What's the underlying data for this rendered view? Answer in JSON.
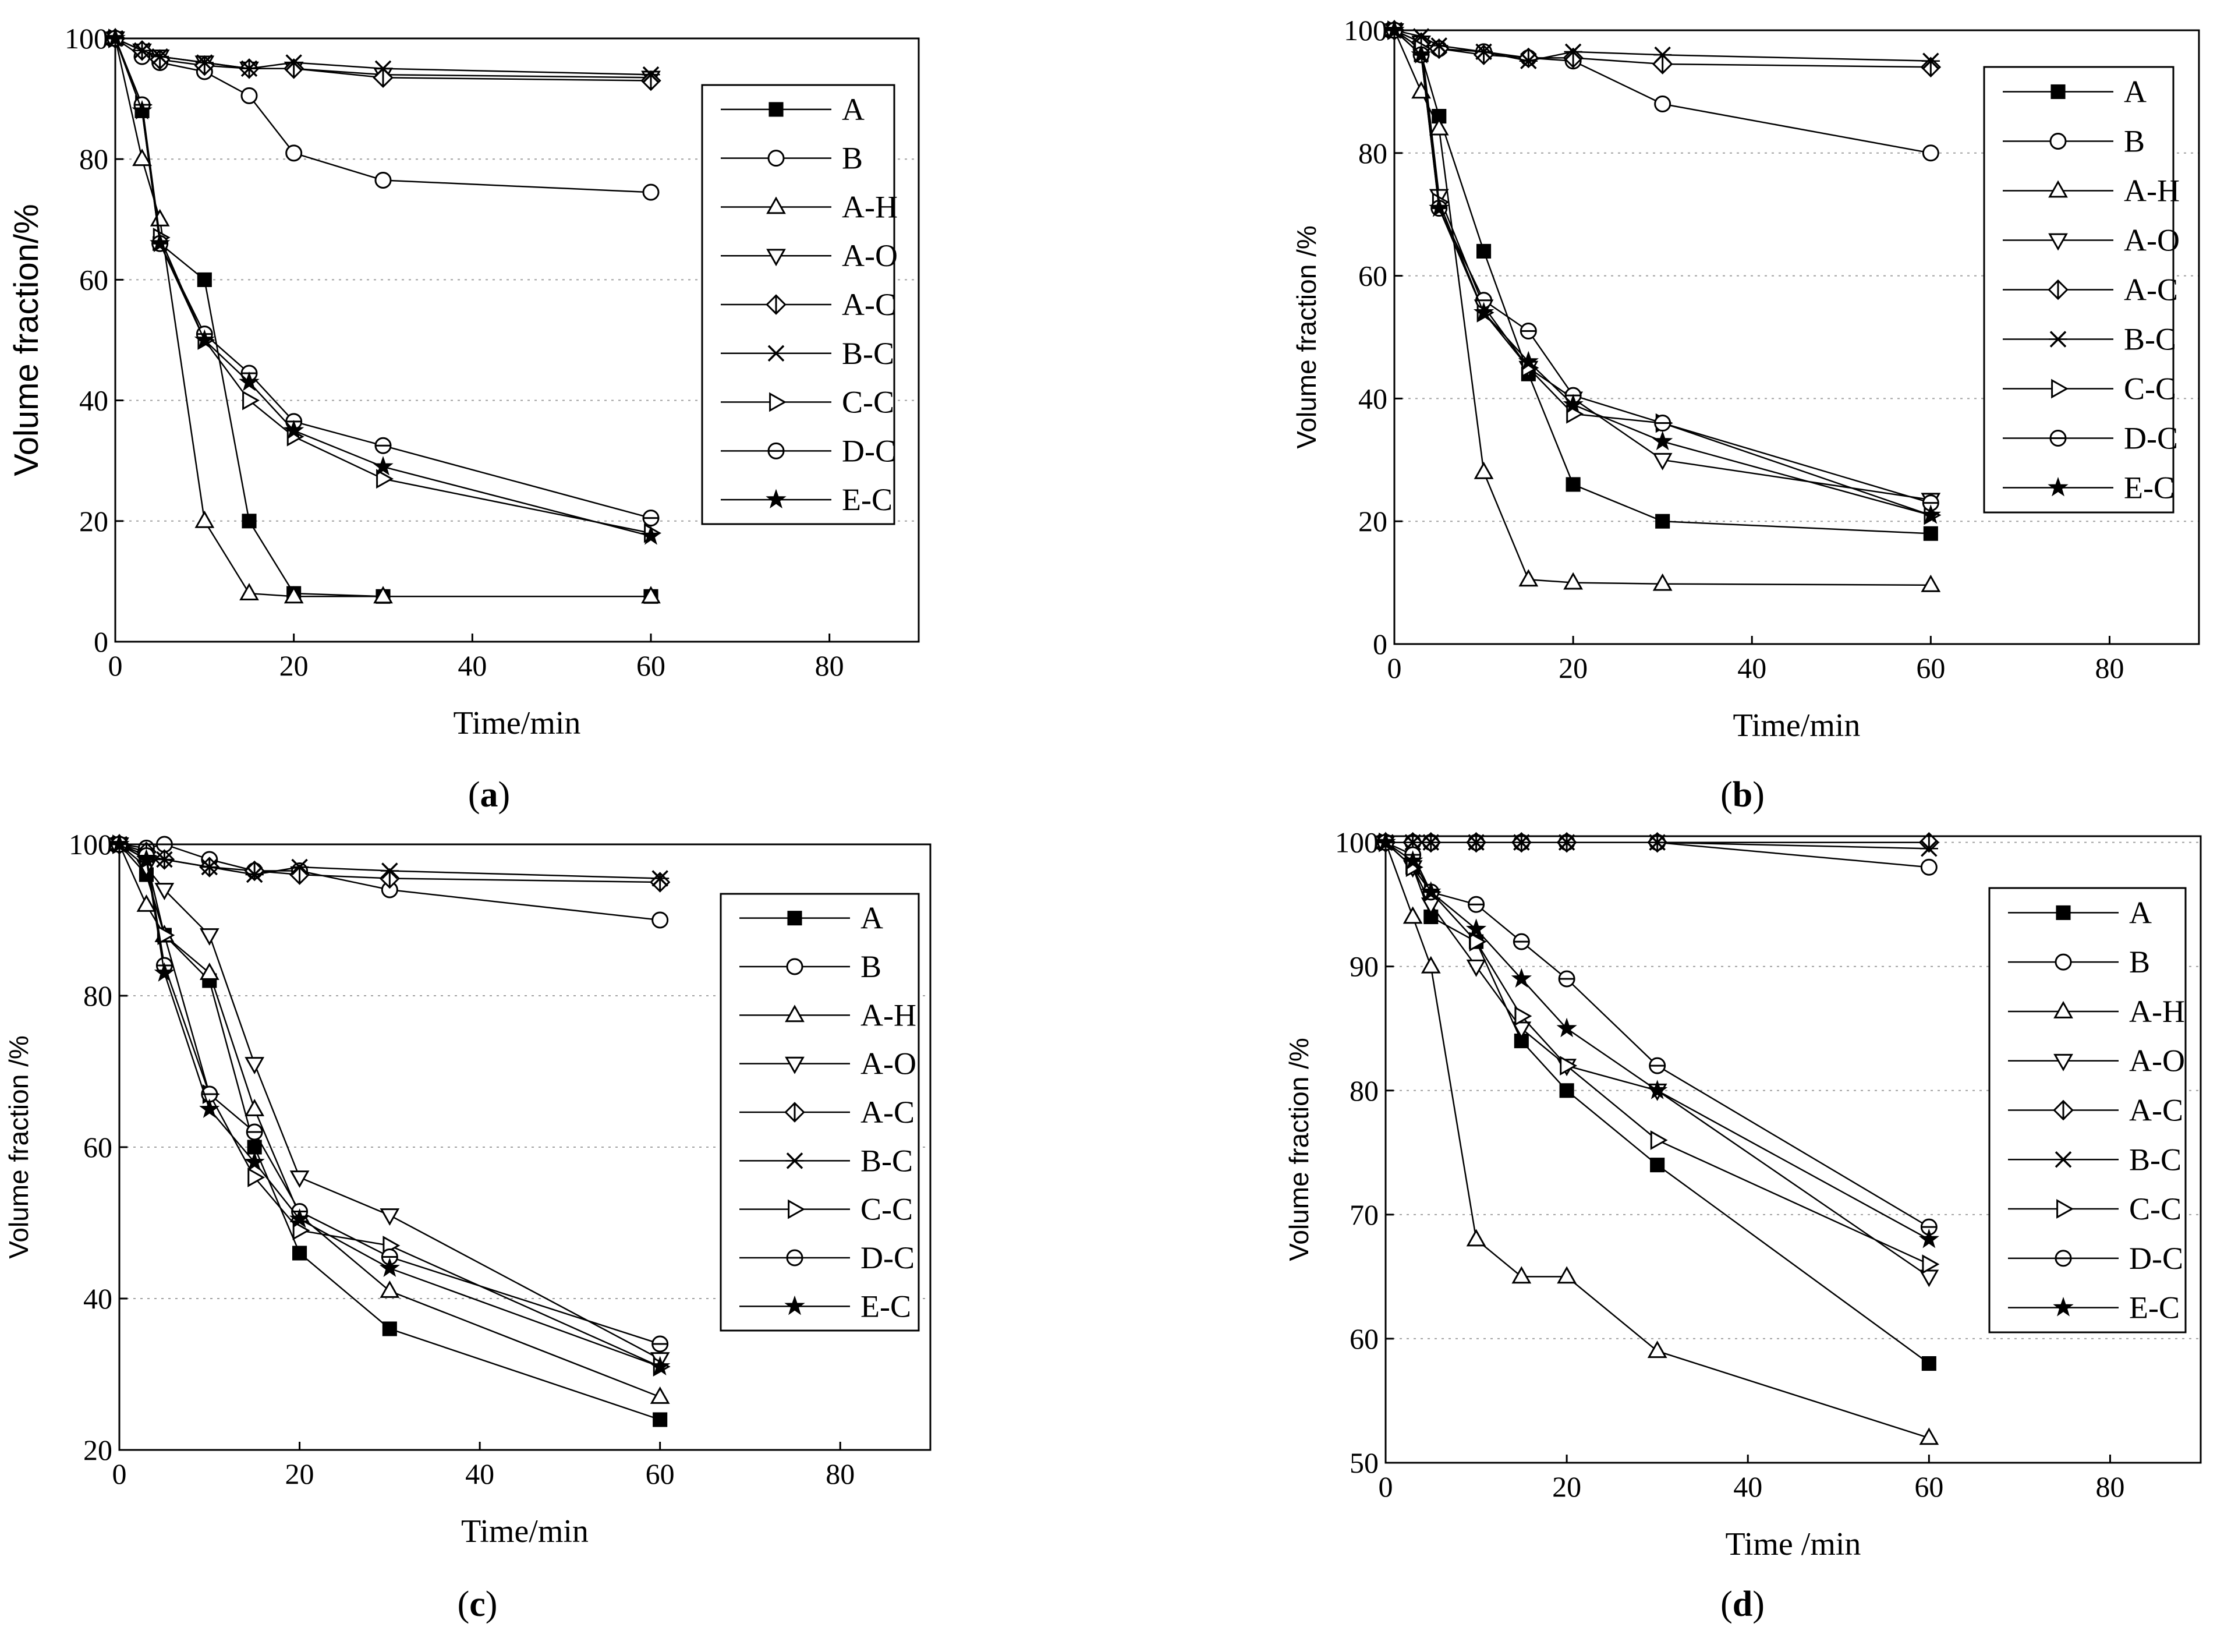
{
  "figure": {
    "marker_colors": {
      "stroke": "#000000",
      "fill_open": "#ffffff",
      "fill_solid": "#000000",
      "grid": "#a0a0a0"
    },
    "panels": [
      {
        "id": "a",
        "label_open": "(",
        "label_letter": "a",
        "label_close": ")",
        "chart_data": {
          "type": "line",
          "xlabel": "Time/min",
          "ylabel": "Volume fraction/%",
          "xlim": [
            0,
            90
          ],
          "ylim": [
            0,
            100
          ],
          "xticks": [
            0,
            20,
            40,
            60,
            80
          ],
          "yticks": [
            0,
            20,
            40,
            60,
            80,
            100
          ],
          "x": [
            0,
            3,
            5,
            10,
            15,
            20,
            30,
            60
          ],
          "series": [
            {
              "name": "A",
              "marker": "square-filled",
              "values": [
                100,
                88,
                66,
                60,
                20,
                8,
                7.5,
                7.5
              ]
            },
            {
              "name": "B",
              "marker": "circle",
              "values": [
                100,
                97,
                96,
                94.5,
                90.5,
                81,
                76.5,
                74.5
              ]
            },
            {
              "name": "A-H",
              "marker": "triangle-up",
              "values": [
                100,
                80,
                70,
                20,
                8,
                7.5,
                7.5,
                7.5
              ]
            },
            {
              "name": "A-O",
              "marker": "triangle-down",
              "values": [
                100,
                98,
                97,
                96,
                95,
                95,
                94,
                93.5
              ]
            },
            {
              "name": "A-C",
              "marker": "diamond-half",
              "values": [
                100,
                98,
                96.5,
                95.5,
                95,
                95,
                93.5,
                93
              ]
            },
            {
              "name": "B-C",
              "marker": "x-cross",
              "values": [
                100,
                98,
                97,
                96,
                95,
                96,
                95,
                94
              ]
            },
            {
              "name": "C-C",
              "marker": "triangle-right",
              "values": [
                100,
                89,
                67,
                50,
                40,
                34,
                27,
                18
              ]
            },
            {
              "name": "D-C",
              "marker": "circle-half",
              "values": [
                100,
                89,
                66,
                51,
                44.5,
                36.5,
                32.5,
                20.5
              ]
            },
            {
              "name": "E-C",
              "marker": "star",
              "values": [
                100,
                88,
                66,
                50,
                43,
                35,
                29,
                17.5
              ]
            }
          ]
        }
      },
      {
        "id": "b",
        "label_open": "(",
        "label_letter": "b",
        "label_close": ")",
        "chart_data": {
          "type": "line",
          "xlabel": "Time/min",
          "ylabel": "Volume fraction /%",
          "xlim": [
            0,
            90
          ],
          "ylim": [
            0,
            100
          ],
          "xticks": [
            0,
            20,
            40,
            60,
            80
          ],
          "yticks": [
            0,
            20,
            40,
            60,
            80,
            100
          ],
          "x": [
            0,
            3,
            5,
            10,
            15,
            20,
            30,
            60
          ],
          "series": [
            {
              "name": "A",
              "marker": "square-filled",
              "values": [
                100,
                96,
                86,
                64,
                44,
                26,
                20,
                18
              ]
            },
            {
              "name": "B",
              "marker": "circle",
              "values": [
                100,
                97,
                97,
                96.5,
                95.5,
                95,
                88,
                80
              ]
            },
            {
              "name": "A-H",
              "marker": "triangle-up",
              "values": [
                100,
                90,
                84,
                28,
                10.5,
                10,
                9.8,
                9.6
              ]
            },
            {
              "name": "A-O",
              "marker": "triangle-down",
              "values": [
                100,
                98,
                73,
                55,
                45,
                40,
                30,
                23.5
              ]
            },
            {
              "name": "A-C",
              "marker": "diamond-half",
              "values": [
                100,
                98,
                97,
                96,
                95.5,
                95.5,
                94.5,
                94
              ]
            },
            {
              "name": "B-C",
              "marker": "x-cross",
              "values": [
                100,
                99,
                97.5,
                96.5,
                95,
                96.5,
                96,
                95
              ]
            },
            {
              "name": "C-C",
              "marker": "triangle-right",
              "values": [
                100,
                97,
                72,
                54,
                45,
                37.5,
                36,
                21
              ]
            },
            {
              "name": "D-C",
              "marker": "circle-half",
              "values": [
                100,
                96,
                71,
                56,
                51,
                40.5,
                36,
                23
              ]
            },
            {
              "name": "E-C",
              "marker": "star",
              "values": [
                100,
                96,
                71,
                54,
                46,
                39,
                33,
                21
              ]
            }
          ]
        }
      },
      {
        "id": "c",
        "label_open": "(",
        "label_letter": "c",
        "label_close": ")",
        "chart_data": {
          "type": "line",
          "xlabel": "Time/min",
          "ylabel": "Volume fraction /%",
          "xlim": [
            0,
            90
          ],
          "ylim": [
            20,
            100
          ],
          "xticks": [
            0,
            20,
            40,
            60,
            80
          ],
          "yticks": [
            20,
            40,
            60,
            80,
            100
          ],
          "x": [
            0,
            3,
            5,
            10,
            15,
            20,
            30,
            60
          ],
          "series": [
            {
              "name": "A",
              "marker": "square-filled",
              "values": [
                100,
                96,
                88,
                82,
                60,
                46,
                36,
                24
              ]
            },
            {
              "name": "B",
              "marker": "circle",
              "values": [
                100,
                99.5,
                100,
                98,
                96.5,
                96.5,
                94,
                90
              ]
            },
            {
              "name": "A-H",
              "marker": "triangle-up",
              "values": [
                100,
                92,
                88,
                83,
                65,
                51,
                41,
                27
              ]
            },
            {
              "name": "A-O",
              "marker": "triangle-down",
              "values": [
                100,
                97,
                94,
                88,
                71,
                56,
                51,
                32
              ]
            },
            {
              "name": "A-C",
              "marker": "diamond-half",
              "values": [
                100,
                99,
                98,
                97,
                96.5,
                96,
                95.5,
                95
              ]
            },
            {
              "name": "B-C",
              "marker": "x-cross",
              "values": [
                100,
                98.5,
                98,
                97,
                96,
                97,
                96.5,
                95.5
              ]
            },
            {
              "name": "C-C",
              "marker": "triangle-right",
              "values": [
                100,
                98,
                88,
                67,
                56,
                49,
                47,
                31
              ]
            },
            {
              "name": "D-C",
              "marker": "circle-half",
              "values": [
                100,
                98.5,
                84,
                67,
                62,
                51.5,
                45.5,
                34
              ]
            },
            {
              "name": "E-C",
              "marker": "star",
              "values": [
                100,
                98,
                83,
                65,
                58,
                50.5,
                44,
                31
              ]
            }
          ]
        }
      },
      {
        "id": "d",
        "label_open": "(",
        "label_letter": "d",
        "label_close": ")",
        "chart_data": {
          "type": "line",
          "xlabel": "Time /min",
          "ylabel": "Volume fraction /%",
          "xlim": [
            0,
            90
          ],
          "ylim": [
            50,
            100.5
          ],
          "xticks": [
            0,
            20,
            40,
            60,
            80
          ],
          "yticks": [
            50,
            60,
            70,
            80,
            90,
            100
          ],
          "x": [
            0,
            3,
            5,
            10,
            15,
            20,
            30,
            60
          ],
          "series": [
            {
              "name": "A",
              "marker": "square-filled",
              "values": [
                100,
                98,
                94,
                92,
                84,
                80,
                74,
                58
              ]
            },
            {
              "name": "B",
              "marker": "circle",
              "values": [
                100,
                100,
                100,
                100,
                100,
                100,
                100,
                98
              ]
            },
            {
              "name": "A-H",
              "marker": "triangle-up",
              "values": [
                100,
                94,
                90,
                68,
                65,
                65,
                59,
                52
              ]
            },
            {
              "name": "A-O",
              "marker": "triangle-down",
              "values": [
                100,
                98,
                95,
                90,
                85,
                82,
                80,
                65
              ]
            },
            {
              "name": "A-C",
              "marker": "diamond-half",
              "values": [
                100,
                100,
                100,
                100,
                100,
                100,
                100,
                100
              ]
            },
            {
              "name": "B-C",
              "marker": "x-cross",
              "values": [
                100,
                100,
                100,
                100,
                100,
                100,
                100,
                99.5
              ]
            },
            {
              "name": "C-C",
              "marker": "triangle-right",
              "values": [
                100,
                98,
                96,
                92,
                86,
                82,
                76,
                66
              ]
            },
            {
              "name": "D-C",
              "marker": "circle-half",
              "values": [
                100,
                99,
                96,
                95,
                92,
                89,
                82,
                69
              ]
            },
            {
              "name": "E-C",
              "marker": "star",
              "values": [
                100,
                98.5,
                96,
                93,
                89,
                85,
                80,
                68
              ]
            }
          ]
        }
      }
    ]
  }
}
